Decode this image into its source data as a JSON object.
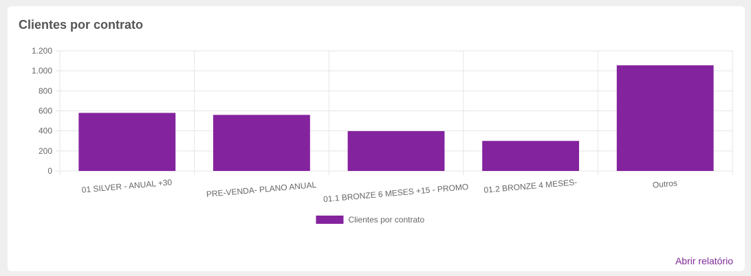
{
  "card": {
    "title": "Clientes por contrato",
    "report_link": "Abrir relatório"
  },
  "colors": {
    "bar": "#84239e",
    "grid": "#e5e5e5",
    "text": "#666666",
    "link": "#7e2a96"
  },
  "chart_data": {
    "type": "bar",
    "categories": [
      "01 SILVER - ANUAL +30",
      "PRE-VENDA- PLANO ANUAL",
      "01.1 BRONZE 6 MESES +15 - PROMO",
      "01.2 BRONZE 4 MESES-",
      "Outros"
    ],
    "tick_labels": [
      "0",
      "200",
      "400",
      "600",
      "800",
      "1.000",
      "1.200"
    ],
    "series": [
      {
        "name": "Clientes por contrato",
        "values": [
          580,
          560,
          398,
          300,
          1055
        ]
      }
    ],
    "ylim": [
      0,
      1200
    ],
    "grid": true,
    "legend": "bottom"
  }
}
